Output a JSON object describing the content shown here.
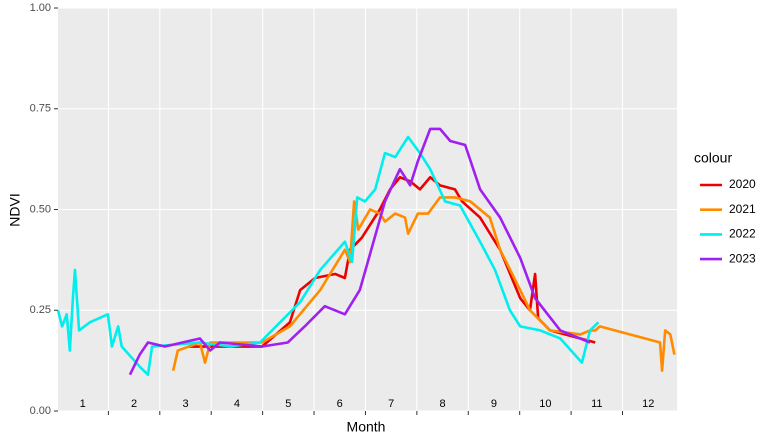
{
  "chart_data": {
    "type": "line",
    "x_label": "Month",
    "y_label": "NDVI",
    "legend_title": "colour",
    "legend": "right",
    "xlim": [
      1.02,
      13.06
    ],
    "ylim": [
      0,
      1
    ],
    "xticks": [
      {
        "value": 1.5,
        "label": "1"
      },
      {
        "value": 2.5,
        "label": "2"
      },
      {
        "value": 3.5,
        "label": "3"
      },
      {
        "value": 4.5,
        "label": "4"
      },
      {
        "value": 5.5,
        "label": "5"
      },
      {
        "value": 6.5,
        "label": "6"
      },
      {
        "value": 7.5,
        "label": "7"
      },
      {
        "value": 8.5,
        "label": "8"
      },
      {
        "value": 9.5,
        "label": "9"
      },
      {
        "value": 10.5,
        "label": "10"
      },
      {
        "value": 11.5,
        "label": "11"
      },
      {
        "value": 12.5,
        "label": "12"
      }
    ],
    "x_boundaries": [
      2,
      3,
      4,
      5,
      6,
      7,
      8,
      9,
      10,
      11,
      12
    ],
    "yticks": [
      {
        "value": 0,
        "label": "0.00"
      },
      {
        "value": 0.25,
        "label": "0.25"
      },
      {
        "value": 0.5,
        "label": "0.50"
      },
      {
        "value": 0.75,
        "label": "0.75"
      },
      {
        "value": 1,
        "label": "1.00"
      }
    ],
    "grid": true,
    "series": [
      {
        "name": "2020",
        "color": "#ee0000",
        "x": [
          3.55,
          4.99,
          5.53,
          5.73,
          6.02,
          6.41,
          6.6,
          6.7,
          6.93,
          7.28,
          7.48,
          7.67,
          7.87,
          8.06,
          8.26,
          8.45,
          8.74,
          8.88,
          9.23,
          9.62,
          10.01,
          10.2,
          10.3,
          10.36,
          10.59,
          11.18,
          11.47
        ],
        "values": [
          0.16,
          0.16,
          0.22,
          0.3,
          0.33,
          0.34,
          0.33,
          0.4,
          0.43,
          0.5,
          0.55,
          0.58,
          0.57,
          0.55,
          0.58,
          0.56,
          0.55,
          0.52,
          0.48,
          0.4,
          0.28,
          0.25,
          0.34,
          0.23,
          0.2,
          0.18,
          0.17
        ]
      },
      {
        "name": "2021",
        "color": "#ff8c00",
        "x": [
          3.26,
          3.35,
          3.78,
          3.88,
          3.98,
          4.99,
          5.53,
          6.12,
          6.6,
          6.7,
          6.78,
          6.86,
          7.09,
          7.28,
          7.38,
          7.58,
          7.77,
          7.83,
          8.02,
          8.22,
          8.45,
          8.74,
          9.04,
          9.42,
          9.62,
          10.01,
          10.2,
          10.59,
          11.18,
          11.37,
          11.47,
          11.56,
          12.73,
          12.77,
          12.83,
          12.93,
          13.01
        ],
        "values": [
          0.1,
          0.15,
          0.17,
          0.12,
          0.17,
          0.17,
          0.21,
          0.3,
          0.4,
          0.37,
          0.52,
          0.45,
          0.5,
          0.49,
          0.47,
          0.49,
          0.48,
          0.44,
          0.49,
          0.49,
          0.53,
          0.53,
          0.52,
          0.48,
          0.4,
          0.3,
          0.25,
          0.2,
          0.19,
          0.2,
          0.2,
          0.21,
          0.17,
          0.1,
          0.2,
          0.19,
          0.14
        ]
      },
      {
        "name": "2022",
        "color": "#00eeee",
        "x": [
          1.02,
          1.1,
          1.19,
          1.25,
          1.31,
          1.35,
          1.43,
          1.64,
          1.99,
          2.07,
          2.19,
          2.26,
          2.61,
          2.77,
          2.85,
          3.78,
          4.37,
          4.95,
          5.34,
          5.73,
          6.12,
          6.6,
          6.74,
          6.84,
          6.99,
          7.19,
          7.38,
          7.58,
          7.83,
          8.06,
          8.26,
          8.55,
          8.84,
          9.23,
          9.52,
          9.81,
          10.01,
          10.4,
          10.79,
          11.21,
          11.37,
          11.53
        ],
        "values": [
          0.25,
          0.21,
          0.24,
          0.15,
          0.28,
          0.35,
          0.2,
          0.22,
          0.24,
          0.16,
          0.21,
          0.16,
          0.11,
          0.09,
          0.16,
          0.17,
          0.16,
          0.17,
          0.22,
          0.27,
          0.35,
          0.42,
          0.37,
          0.53,
          0.52,
          0.55,
          0.64,
          0.63,
          0.68,
          0.64,
          0.6,
          0.52,
          0.51,
          0.42,
          0.35,
          0.25,
          0.21,
          0.2,
          0.18,
          0.12,
          0.2,
          0.22
        ]
      },
      {
        "name": "2023",
        "color": "#a020f0",
        "x": [
          2.42,
          2.61,
          2.77,
          3.1,
          3.78,
          3.98,
          4.17,
          4.99,
          5.49,
          5.82,
          6.21,
          6.6,
          6.89,
          7.38,
          7.67,
          7.87,
          8.02,
          8.26,
          8.45,
          8.65,
          8.94,
          9.23,
          9.62,
          10.01,
          10.3,
          10.79,
          11.37
        ],
        "values": [
          0.09,
          0.14,
          0.17,
          0.16,
          0.18,
          0.15,
          0.17,
          0.16,
          0.17,
          0.21,
          0.26,
          0.24,
          0.3,
          0.52,
          0.6,
          0.56,
          0.62,
          0.7,
          0.7,
          0.67,
          0.66,
          0.55,
          0.48,
          0.38,
          0.28,
          0.2,
          0.17
        ]
      }
    ]
  }
}
